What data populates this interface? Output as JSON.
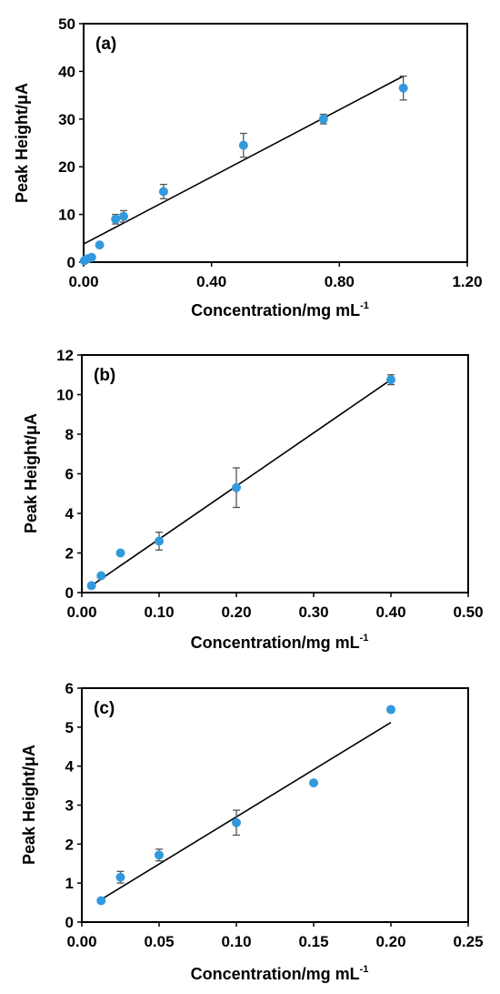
{
  "chart_data": [
    {
      "type": "scatter",
      "panel_label": "(a)",
      "xlabel": "Concentration/mg mL",
      "xlabel_sup": "-1",
      "ylabel": "Peak Height/μA",
      "xlim": [
        0,
        1.2
      ],
      "ylim": [
        0,
        50
      ],
      "x_ticks": [
        "0.00",
        "0.40",
        "0.80",
        "1.20"
      ],
      "x_tick_values": [
        0,
        0.4,
        0.8,
        1.2
      ],
      "y_ticks": [
        "0",
        "10",
        "20",
        "30",
        "40",
        "50"
      ],
      "y_tick_values": [
        0,
        10,
        20,
        30,
        40,
        50
      ],
      "marker_color": "#3399dd",
      "points": [
        {
          "x": 0.0025,
          "y": 0.3,
          "err": 0.2
        },
        {
          "x": 0.005,
          "y": 0.5,
          "err": 0.2
        },
        {
          "x": 0.0125,
          "y": 0.7,
          "err": 0.2
        },
        {
          "x": 0.025,
          "y": 1.0,
          "err": 0.3
        },
        {
          "x": 0.05,
          "y": 3.6,
          "err": 0.4
        },
        {
          "x": 0.1,
          "y": 9.0,
          "err": 1.0
        },
        {
          "x": 0.125,
          "y": 9.6,
          "err": 1.2
        },
        {
          "x": 0.25,
          "y": 14.8,
          "err": 1.5
        },
        {
          "x": 0.5,
          "y": 24.5,
          "err": 2.5
        },
        {
          "x": 0.75,
          "y": 30.0,
          "err": 1.0
        },
        {
          "x": 1.0,
          "y": 36.5,
          "err": 2.5
        }
      ],
      "fit_line": {
        "x": [
          0,
          1.0
        ],
        "y": [
          3.8,
          39.0
        ]
      }
    },
    {
      "type": "scatter",
      "panel_label": "(b)",
      "xlabel": "Concentration/mg mL",
      "xlabel_sup": "-1",
      "ylabel": "Peak Height/μA",
      "xlim": [
        0,
        0.5
      ],
      "ylim": [
        0,
        12
      ],
      "x_ticks": [
        "0.00",
        "0.10",
        "0.20",
        "0.30",
        "0.40",
        "0.50"
      ],
      "x_tick_values": [
        0,
        0.1,
        0.2,
        0.3,
        0.4,
        0.5
      ],
      "y_ticks": [
        "0",
        "2",
        "4",
        "6",
        "8",
        "10",
        "12"
      ],
      "y_tick_values": [
        0,
        2,
        4,
        6,
        8,
        10,
        12
      ],
      "marker_color": "#3399dd",
      "points": [
        {
          "x": 0.0125,
          "y": 0.35,
          "err": 0.1
        },
        {
          "x": 0.025,
          "y": 0.85,
          "err": 0.1
        },
        {
          "x": 0.05,
          "y": 2.0,
          "err": 0.1
        },
        {
          "x": 0.1,
          "y": 2.6,
          "err": 0.45
        },
        {
          "x": 0.2,
          "y": 5.3,
          "err": 1.0
        },
        {
          "x": 0.4,
          "y": 10.75,
          "err": 0.25
        }
      ],
      "fit_line": {
        "x": [
          0.0125,
          0.4
        ],
        "y": [
          0.35,
          10.75
        ]
      }
    },
    {
      "type": "scatter",
      "panel_label": "(c)",
      "xlabel": "Concentration/mg mL",
      "xlabel_sup": "-1",
      "ylabel": "Peak Height/μA",
      "xlim": [
        0,
        0.25
      ],
      "ylim": [
        0,
        6
      ],
      "x_ticks": [
        "0.00",
        "0.05",
        "0.10",
        "0.15",
        "0.20",
        "0.25"
      ],
      "x_tick_values": [
        0,
        0.05,
        0.1,
        0.15,
        0.2,
        0.25
      ],
      "y_ticks": [
        "0",
        "1",
        "2",
        "3",
        "4",
        "5",
        "6"
      ],
      "y_tick_values": [
        0,
        1,
        2,
        3,
        4,
        5,
        6
      ],
      "marker_color": "#3399dd",
      "points": [
        {
          "x": 0.0125,
          "y": 0.55,
          "err": 0.05
        },
        {
          "x": 0.025,
          "y": 1.15,
          "err": 0.15
        },
        {
          "x": 0.05,
          "y": 1.72,
          "err": 0.15
        },
        {
          "x": 0.1,
          "y": 2.55,
          "err": 0.32
        },
        {
          "x": 0.15,
          "y": 3.57,
          "err": 0.05
        },
        {
          "x": 0.2,
          "y": 5.45,
          "err": 0.05
        }
      ],
      "fit_line": {
        "x": [
          0.0125,
          0.2
        ],
        "y": [
          0.58,
          5.12
        ]
      }
    }
  ]
}
